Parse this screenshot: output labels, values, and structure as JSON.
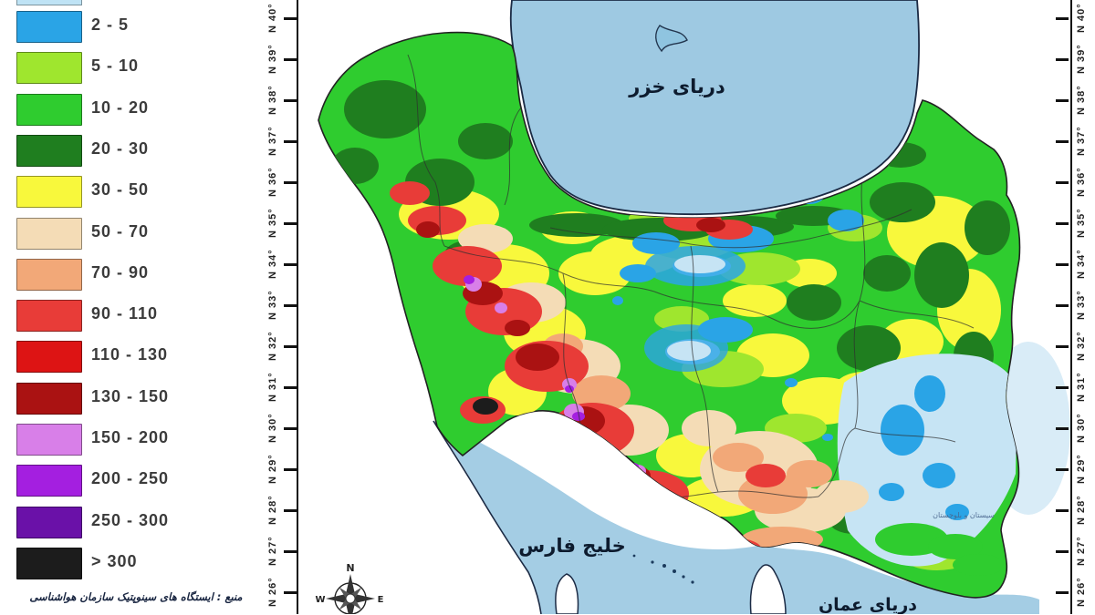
{
  "legend": {
    "partial_top": {
      "color": "#BFE3F5"
    },
    "items": [
      {
        "label": "2 - 5",
        "color": "#2AA4E6"
      },
      {
        "label": "5 - 10",
        "color": "#9FE62E"
      },
      {
        "label": "10 - 20",
        "color": "#2FCC2F"
      },
      {
        "label": "20 - 30",
        "color": "#1F7E1F"
      },
      {
        "label": "30 - 50",
        "color": "#F8F83C"
      },
      {
        "label": "50 - 70",
        "color": "#F4DCB6"
      },
      {
        "label": "70 - 90",
        "color": "#F2A878"
      },
      {
        "label": "90 - 110",
        "color": "#E83C38"
      },
      {
        "label": "110 - 130",
        "color": "#DD1414"
      },
      {
        "label": "130 - 150",
        "color": "#AA1212"
      },
      {
        "label": "150 - 200",
        "color": "#D87FE8"
      },
      {
        "label": "200 - 250",
        "color": "#A41FE0"
      },
      {
        "label": "250 - 300",
        "color": "#6A11A8"
      },
      {
        "label": "> 300",
        "color": "#1C1C1C"
      }
    ],
    "source_note": "منبع : ایستگاه های سینوپتیک سازمان هواشناسی"
  },
  "axes": {
    "left_latitudes": [
      "N 40°",
      "N 39°",
      "N 38°",
      "N 37°",
      "N 36°",
      "N 35°",
      "N 34°",
      "N 33°",
      "N 32°",
      "N 31°",
      "N 30°",
      "N 29°",
      "N 28°",
      "N 27°",
      "N 26°"
    ],
    "right_latitudes": [
      "N 40°",
      "N 39°",
      "N 38°",
      "N 37°",
      "N 36°",
      "N 35°",
      "N 34°",
      "N 33°",
      "N 32°",
      "N 31°",
      "N 30°",
      "N 29°",
      "N 28°",
      "N 27°",
      "N 26°"
    ]
  },
  "map": {
    "sea_color": "#A4CDE4",
    "land_base_color": "#2FCC2F",
    "labels": {
      "caspian": "دریای خزر",
      "persian_gulf": "خلیج فارس",
      "oman_sea": "دریای عمان",
      "sistan": "سیستان و بلوچستان"
    },
    "compass": {
      "north": "N",
      "west": "W",
      "east": "E"
    }
  }
}
